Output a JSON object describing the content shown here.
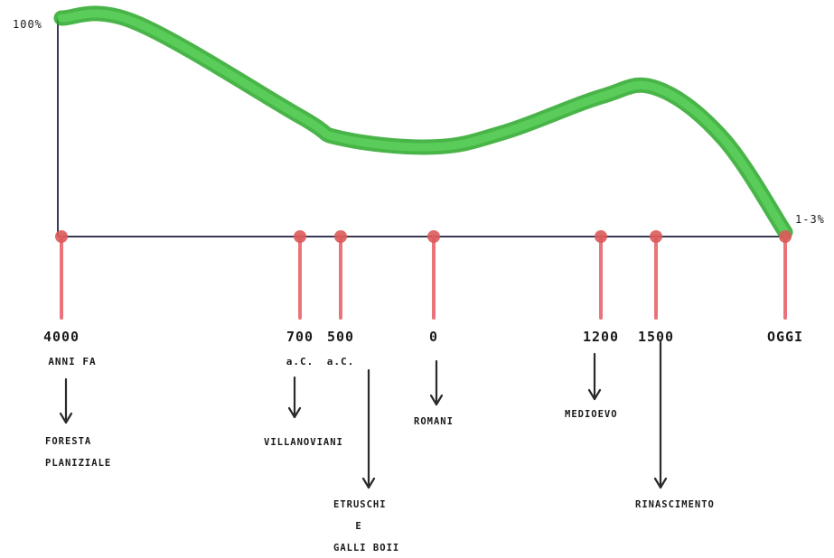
{
  "axis": {
    "y_top_label": "100%",
    "y_end_label": "1-3%"
  },
  "curve_color": "#33b533",
  "marker_color": "#e06060",
  "chart_data": {
    "type": "line",
    "x": [
      "4000 ANNI FA",
      "700 a.C.",
      "500 a.C.",
      "0",
      "1200",
      "1500",
      "OGGI"
    ],
    "ylim": [
      0,
      100
    ],
    "series": [
      {
        "values": [
          100,
          55,
          45,
          41,
          64,
          68,
          2
        ]
      }
    ]
  },
  "markers": [
    {
      "date": "4000",
      "sub": "ANNI FA",
      "event_lines": [
        "FORESTA",
        "PLANIZIALE"
      ]
    },
    {
      "date": "700",
      "sub": "a.C.",
      "event_lines": [
        "VILLANOVIANI"
      ]
    },
    {
      "date": "500",
      "sub": "a.C.",
      "event_lines": [
        "ETRUSCHI",
        "E",
        "GALLI BOII"
      ]
    },
    {
      "date": "0",
      "sub": "",
      "event_lines": [
        "ROMANI"
      ]
    },
    {
      "date": "1200",
      "sub": "",
      "event_lines": [
        "MEDIOEVO"
      ]
    },
    {
      "date": "1500",
      "sub": "",
      "event_lines": [
        "RINASCIMENTO"
      ]
    },
    {
      "date": "OGGI",
      "sub": "",
      "event_lines": []
    }
  ]
}
